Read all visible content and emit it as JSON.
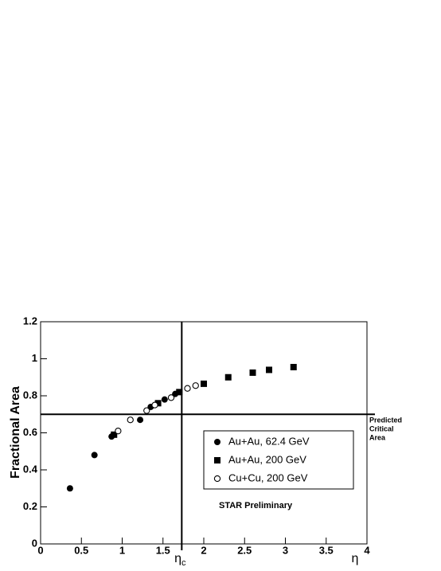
{
  "chart_data": {
    "type": "scatter",
    "ylabel": "Fractional Area",
    "xlabel": "η",
    "xlim": [
      0,
      4
    ],
    "xticks": [
      0,
      0.5,
      1,
      1.5,
      2,
      2.5,
      3,
      3.5,
      4
    ],
    "ylim": [
      0,
      1.2
    ],
    "yticks": [
      0,
      0.2,
      0.4,
      0.6,
      0.8,
      1,
      1.2
    ],
    "vline": 1.73,
    "vline_label": "η",
    "vline_label_sub": "c",
    "hline": 0.7,
    "hline_label": [
      "Predicted",
      "Critical",
      "Area"
    ],
    "annotation": "STAR Preliminary",
    "legend": "lower right",
    "series": [
      {
        "name": "Au+Au, 62.4 GeV",
        "color": "#000000",
        "marker": "circle",
        "x": [
          0.36,
          0.66,
          0.87,
          1.22,
          1.35,
          1.52,
          1.65
        ],
        "values": [
          0.3,
          0.48,
          0.58,
          0.67,
          0.74,
          0.78,
          0.81
        ]
      },
      {
        "name": "Au+Au, 200 GeV",
        "color": "#000000",
        "marker": "square",
        "x": [
          0.9,
          1.44,
          1.7,
          2.0,
          2.3,
          2.6,
          2.8,
          3.1
        ],
        "values": [
          0.59,
          0.76,
          0.82,
          0.865,
          0.9,
          0.925,
          0.94,
          0.955
        ]
      },
      {
        "name": "Cu+Cu, 200 GeV",
        "color": "#000000",
        "marker": "open-circle",
        "x": [
          0.95,
          1.1,
          1.3,
          1.4,
          1.6,
          1.8,
          1.9
        ],
        "values": [
          0.61,
          0.67,
          0.72,
          0.75,
          0.79,
          0.84,
          0.855
        ]
      }
    ]
  }
}
